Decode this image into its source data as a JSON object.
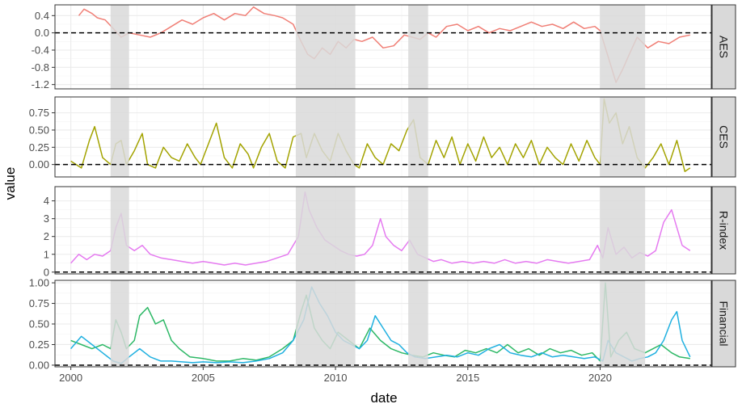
{
  "chart_data": {
    "type": "line",
    "layout": "faceted-stacked",
    "xlabel": "date",
    "ylabel": "value",
    "x_range": [
      1999.4,
      2024.2
    ],
    "x_ticks": [
      2000,
      2005,
      2010,
      2015,
      2020
    ],
    "shaded_periods": [
      [
        2001.5,
        2002.2
      ],
      [
        2008.5,
        2010.75
      ],
      [
        2012.75,
        2013.5
      ],
      [
        2020.0,
        2021.7
      ]
    ],
    "reference_line": 0,
    "grid": true,
    "colors": {
      "AES": "#F07F76",
      "CES": "#A3A300",
      "R-index": "#E57AF0",
      "Financial_green": "#2DB866",
      "Financial_blue": "#1FB0E0",
      "shade": "#d9d9d9",
      "strip": "#d9d9d9"
    },
    "panels": [
      {
        "label": "AES",
        "ylim": [
          -1.3,
          0.65
        ],
        "y_ticks": [
          0.4,
          0.0,
          -0.4,
          -0.8,
          -1.2
        ],
        "y_tick_labels": [
          "0.4",
          "0.0",
          "-0.4",
          "-0.8",
          "-1.2"
        ],
        "series": [
          {
            "color": "#F07F76",
            "x": [
              2000.3,
              2000.5,
              2000.8,
              2001.0,
              2001.3,
              2001.6,
              2001.9,
              2002.2,
              2002.6,
              2003.0,
              2003.4,
              2003.8,
              2004.2,
              2004.6,
              2005.0,
              2005.4,
              2005.8,
              2006.2,
              2006.6,
              2006.9,
              2007.3,
              2007.7,
              2008.0,
              2008.4,
              2008.7,
              2008.95,
              2009.2,
              2009.5,
              2009.8,
              2010.1,
              2010.4,
              2010.7,
              2011.0,
              2011.4,
              2011.8,
              2012.2,
              2012.6,
              2012.9,
              2013.2,
              2013.5,
              2013.8,
              2014.2,
              2014.6,
              2015.0,
              2015.4,
              2015.8,
              2016.2,
              2016.6,
              2017.0,
              2017.4,
              2017.8,
              2018.2,
              2018.6,
              2019.0,
              2019.4,
              2019.8,
              2020.0,
              2020.2,
              2020.4,
              2020.6,
              2020.85,
              2021.1,
              2021.4,
              2021.8,
              2022.2,
              2022.6,
              2023.0,
              2023.4
            ],
            "y": [
              0.4,
              0.55,
              0.45,
              0.35,
              0.3,
              0.1,
              -0.1,
              0.0,
              -0.05,
              -0.1,
              0.0,
              0.15,
              0.3,
              0.2,
              0.35,
              0.45,
              0.3,
              0.45,
              0.4,
              0.6,
              0.45,
              0.4,
              0.35,
              0.2,
              -0.2,
              -0.5,
              -0.6,
              -0.35,
              -0.5,
              -0.2,
              -0.35,
              -0.15,
              -0.2,
              -0.1,
              -0.35,
              -0.3,
              -0.05,
              -0.1,
              -0.15,
              0.0,
              -0.1,
              0.15,
              0.2,
              0.05,
              0.15,
              0.0,
              0.1,
              0.05,
              0.15,
              0.25,
              0.15,
              0.2,
              0.1,
              0.25,
              0.1,
              0.15,
              0.05,
              -0.35,
              -0.75,
              -1.15,
              -0.85,
              -0.5,
              -0.1,
              -0.35,
              -0.2,
              -0.25,
              -0.1,
              -0.05
            ]
          }
        ]
      },
      {
        "label": "CES",
        "ylim": [
          -0.18,
          0.98
        ],
        "y_ticks": [
          0.0,
          0.25,
          0.5,
          0.75
        ],
        "y_tick_labels": [
          "0.00",
          "0.25",
          "0.50",
          "0.75"
        ],
        "series": [
          {
            "color": "#A3A300",
            "x": [
              2000.0,
              2000.4,
              2000.7,
              2000.9,
              2001.2,
              2001.5,
              2001.7,
              2001.9,
              2002.1,
              2002.4,
              2002.7,
              2002.9,
              2003.2,
              2003.5,
              2003.8,
              2004.1,
              2004.4,
              2004.7,
              2004.9,
              2005.2,
              2005.5,
              2005.8,
              2006.1,
              2006.4,
              2006.7,
              2006.9,
              2007.2,
              2007.5,
              2007.8,
              2008.1,
              2008.4,
              2008.7,
              2008.9,
              2009.2,
              2009.5,
              2009.8,
              2010.1,
              2010.4,
              2010.7,
              2010.9,
              2011.2,
              2011.5,
              2011.8,
              2012.1,
              2012.4,
              2012.7,
              2012.95,
              2013.2,
              2013.5,
              2013.8,
              2014.1,
              2014.4,
              2014.7,
              2015.0,
              2015.3,
              2015.6,
              2015.9,
              2016.2,
              2016.5,
              2016.8,
              2017.1,
              2017.4,
              2017.7,
              2018.0,
              2018.3,
              2018.6,
              2018.9,
              2019.2,
              2019.5,
              2019.8,
              2020.0,
              2020.15,
              2020.35,
              2020.6,
              2020.85,
              2021.1,
              2021.4,
              2021.7,
              2022.0,
              2022.3,
              2022.6,
              2022.9,
              2023.2,
              2023.4
            ],
            "y": [
              0.05,
              -0.05,
              0.35,
              0.55,
              0.1,
              0.0,
              0.3,
              0.35,
              0.0,
              0.2,
              0.45,
              0.0,
              -0.05,
              0.25,
              0.1,
              0.05,
              0.3,
              0.1,
              0.0,
              0.3,
              0.6,
              0.1,
              -0.05,
              0.3,
              0.15,
              -0.05,
              0.25,
              0.45,
              0.05,
              -0.05,
              0.4,
              0.45,
              0.1,
              0.45,
              0.2,
              0.05,
              0.45,
              0.2,
              0.0,
              -0.05,
              0.3,
              0.1,
              0.0,
              0.3,
              0.2,
              0.5,
              0.65,
              0.1,
              0.0,
              0.35,
              0.1,
              0.4,
              0.0,
              0.3,
              0.05,
              0.4,
              0.1,
              0.25,
              0.0,
              0.3,
              0.1,
              0.35,
              0.0,
              0.25,
              0.1,
              0.0,
              0.3,
              0.05,
              0.35,
              0.1,
              0.0,
              0.95,
              0.6,
              0.75,
              0.3,
              0.55,
              0.1,
              -0.05,
              0.1,
              0.3,
              0.0,
              0.35,
              -0.1,
              -0.05
            ]
          }
        ]
      },
      {
        "label": "R-index",
        "ylim": [
          -0.1,
          4.8
        ],
        "y_ticks": [
          0,
          1,
          2,
          3,
          4
        ],
        "y_tick_labels": [
          "0",
          "1",
          "2",
          "3",
          "4"
        ],
        "series": [
          {
            "color": "#E57AF0",
            "x": [
              2000.0,
              2000.3,
              2000.6,
              2000.9,
              2001.2,
              2001.5,
              2001.7,
              2001.9,
              2002.1,
              2002.4,
              2002.7,
              2003.0,
              2003.4,
              2003.8,
              2004.2,
              2004.6,
              2005.0,
              2005.4,
              2005.8,
              2006.2,
              2006.6,
              2007.0,
              2007.4,
              2007.8,
              2008.2,
              2008.6,
              2008.85,
              2009.0,
              2009.3,
              2009.6,
              2009.9,
              2010.2,
              2010.5,
              2010.8,
              2011.1,
              2011.4,
              2011.7,
              2011.9,
              2012.2,
              2012.5,
              2012.8,
              2013.1,
              2013.4,
              2013.7,
              2014.0,
              2014.4,
              2014.8,
              2015.2,
              2015.6,
              2016.0,
              2016.4,
              2016.8,
              2017.2,
              2017.6,
              2018.0,
              2018.4,
              2018.8,
              2019.2,
              2019.6,
              2019.9,
              2020.1,
              2020.3,
              2020.6,
              2020.9,
              2021.2,
              2021.5,
              2021.8,
              2022.1,
              2022.4,
              2022.7,
              2022.9,
              2023.1,
              2023.4
            ],
            "y": [
              0.5,
              1.0,
              0.7,
              1.0,
              0.9,
              1.2,
              2.5,
              3.3,
              1.5,
              1.2,
              1.5,
              1.0,
              0.8,
              0.7,
              0.6,
              0.5,
              0.6,
              0.5,
              0.4,
              0.5,
              0.4,
              0.5,
              0.6,
              0.8,
              1.0,
              2.0,
              4.5,
              3.5,
              2.5,
              1.8,
              1.5,
              1.2,
              1.0,
              0.9,
              1.0,
              1.5,
              3.0,
              2.0,
              1.5,
              1.2,
              1.8,
              1.0,
              0.8,
              0.6,
              0.7,
              0.5,
              0.6,
              0.5,
              0.6,
              0.5,
              0.7,
              0.5,
              0.6,
              0.5,
              0.7,
              0.6,
              0.5,
              0.6,
              0.7,
              1.5,
              0.8,
              2.5,
              1.0,
              1.4,
              0.8,
              1.1,
              0.9,
              1.2,
              2.8,
              3.5,
              2.5,
              1.5,
              1.2
            ]
          }
        ]
      },
      {
        "label": "Financial",
        "ylim": [
          -0.02,
          1.03
        ],
        "y_ticks": [
          0.0,
          0.25,
          0.5,
          0.75,
          1.0
        ],
        "y_tick_labels": [
          "0.00",
          "0.25",
          "0.50",
          "0.75",
          "1.00"
        ],
        "series": [
          {
            "color": "#2DB866",
            "x": [
              2000.0,
              2000.4,
              2000.8,
              2001.2,
              2001.5,
              2001.7,
              2001.9,
              2002.1,
              2002.4,
              2002.6,
              2002.9,
              2003.2,
              2003.5,
              2003.8,
              2004.1,
              2004.5,
              2005.0,
              2005.5,
              2006.0,
              2006.5,
              2007.0,
              2007.5,
              2008.0,
              2008.4,
              2008.7,
              2008.9,
              2009.2,
              2009.5,
              2009.8,
              2010.1,
              2010.5,
              2010.9,
              2011.3,
              2011.7,
              2012.1,
              2012.5,
              2012.9,
              2013.3,
              2013.7,
              2014.1,
              2014.5,
              2014.9,
              2015.3,
              2015.7,
              2016.1,
              2016.5,
              2016.9,
              2017.3,
              2017.7,
              2018.1,
              2018.5,
              2018.9,
              2019.3,
              2019.7,
              2020.0,
              2020.2,
              2020.4,
              2020.7,
              2021.0,
              2021.3,
              2021.7,
              2022.0,
              2022.3,
              2022.7,
              2023.0,
              2023.4
            ],
            "y": [
              0.3,
              0.25,
              0.2,
              0.25,
              0.2,
              0.55,
              0.4,
              0.2,
              0.3,
              0.6,
              0.7,
              0.5,
              0.55,
              0.3,
              0.2,
              0.1,
              0.08,
              0.05,
              0.05,
              0.08,
              0.06,
              0.1,
              0.2,
              0.3,
              0.65,
              0.85,
              0.45,
              0.3,
              0.2,
              0.4,
              0.3,
              0.2,
              0.45,
              0.3,
              0.2,
              0.15,
              0.12,
              0.1,
              0.15,
              0.12,
              0.1,
              0.18,
              0.15,
              0.2,
              0.15,
              0.25,
              0.15,
              0.2,
              0.12,
              0.2,
              0.15,
              0.18,
              0.12,
              0.15,
              0.05,
              1.0,
              0.1,
              0.3,
              0.4,
              0.2,
              0.15,
              0.2,
              0.25,
              0.15,
              0.1,
              0.08
            ]
          },
          {
            "color": "#1FB0E0",
            "x": [
              2000.0,
              2000.4,
              2000.8,
              2001.2,
              2001.6,
              2001.9,
              2002.2,
              2002.6,
              2003.0,
              2003.4,
              2003.8,
              2004.2,
              2004.6,
              2005.0,
              2005.5,
              2006.0,
              2006.5,
              2007.0,
              2007.5,
              2008.0,
              2008.4,
              2008.8,
              2009.1,
              2009.4,
              2009.7,
              2010.0,
              2010.3,
              2010.6,
              2010.9,
              2011.2,
              2011.5,
              2011.8,
              2012.1,
              2012.4,
              2012.7,
              2013.0,
              2013.4,
              2013.8,
              2014.2,
              2014.6,
              2015.0,
              2015.4,
              2015.8,
              2016.2,
              2016.6,
              2017.0,
              2017.4,
              2017.8,
              2018.2,
              2018.6,
              2019.0,
              2019.4,
              2019.8,
              2020.1,
              2020.3,
              2020.6,
              2020.9,
              2021.2,
              2021.5,
              2021.8,
              2022.1,
              2022.4,
              2022.7,
              2022.9,
              2023.1,
              2023.4
            ],
            "y": [
              0.2,
              0.35,
              0.25,
              0.15,
              0.05,
              0.02,
              0.1,
              0.2,
              0.1,
              0.05,
              0.05,
              0.04,
              0.03,
              0.04,
              0.03,
              0.04,
              0.03,
              0.05,
              0.08,
              0.15,
              0.3,
              0.55,
              0.95,
              0.75,
              0.6,
              0.4,
              0.3,
              0.25,
              0.2,
              0.3,
              0.6,
              0.45,
              0.3,
              0.25,
              0.15,
              0.1,
              0.08,
              0.1,
              0.12,
              0.1,
              0.15,
              0.12,
              0.2,
              0.25,
              0.15,
              0.12,
              0.1,
              0.15,
              0.1,
              0.12,
              0.1,
              0.08,
              0.1,
              0.05,
              0.3,
              0.15,
              0.1,
              0.05,
              0.08,
              0.1,
              0.15,
              0.3,
              0.55,
              0.65,
              0.3,
              0.1
            ]
          }
        ]
      }
    ]
  }
}
